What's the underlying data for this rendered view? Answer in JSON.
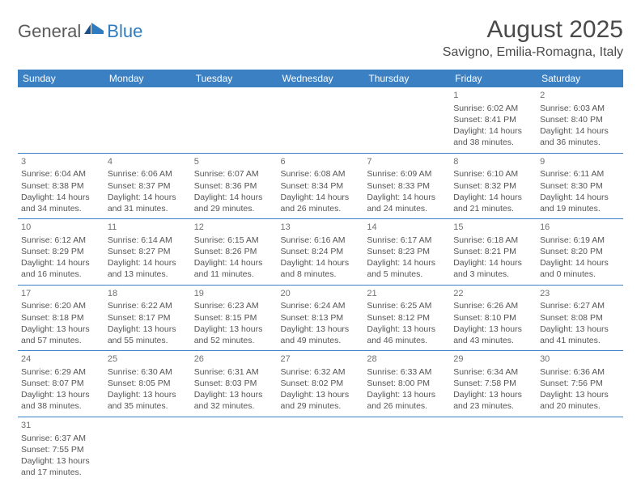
{
  "brand": {
    "part1": "General",
    "part2": "Blue"
  },
  "title": "August 2025",
  "location": "Savigno, Emilia-Romagna, Italy",
  "colors": {
    "header_bg": "#3a80c3",
    "header_text": "#ffffff",
    "border": "#3a80c3",
    "body_text": "#555555",
    "title_text": "#4a4a4a",
    "logo_gray": "#5a5a5a",
    "logo_blue": "#2f7bbf",
    "background": "#ffffff"
  },
  "weekdays": [
    "Sunday",
    "Monday",
    "Tuesday",
    "Wednesday",
    "Thursday",
    "Friday",
    "Saturday"
  ],
  "first_day_index": 5,
  "days": [
    {
      "n": 1,
      "sr": "6:02 AM",
      "ss": "8:41 PM",
      "dl": "14 hours and 38 minutes."
    },
    {
      "n": 2,
      "sr": "6:03 AM",
      "ss": "8:40 PM",
      "dl": "14 hours and 36 minutes."
    },
    {
      "n": 3,
      "sr": "6:04 AM",
      "ss": "8:38 PM",
      "dl": "14 hours and 34 minutes."
    },
    {
      "n": 4,
      "sr": "6:06 AM",
      "ss": "8:37 PM",
      "dl": "14 hours and 31 minutes."
    },
    {
      "n": 5,
      "sr": "6:07 AM",
      "ss": "8:36 PM",
      "dl": "14 hours and 29 minutes."
    },
    {
      "n": 6,
      "sr": "6:08 AM",
      "ss": "8:34 PM",
      "dl": "14 hours and 26 minutes."
    },
    {
      "n": 7,
      "sr": "6:09 AM",
      "ss": "8:33 PM",
      "dl": "14 hours and 24 minutes."
    },
    {
      "n": 8,
      "sr": "6:10 AM",
      "ss": "8:32 PM",
      "dl": "14 hours and 21 minutes."
    },
    {
      "n": 9,
      "sr": "6:11 AM",
      "ss": "8:30 PM",
      "dl": "14 hours and 19 minutes."
    },
    {
      "n": 10,
      "sr": "6:12 AM",
      "ss": "8:29 PM",
      "dl": "14 hours and 16 minutes."
    },
    {
      "n": 11,
      "sr": "6:14 AM",
      "ss": "8:27 PM",
      "dl": "14 hours and 13 minutes."
    },
    {
      "n": 12,
      "sr": "6:15 AM",
      "ss": "8:26 PM",
      "dl": "14 hours and 11 minutes."
    },
    {
      "n": 13,
      "sr": "6:16 AM",
      "ss": "8:24 PM",
      "dl": "14 hours and 8 minutes."
    },
    {
      "n": 14,
      "sr": "6:17 AM",
      "ss": "8:23 PM",
      "dl": "14 hours and 5 minutes."
    },
    {
      "n": 15,
      "sr": "6:18 AM",
      "ss": "8:21 PM",
      "dl": "14 hours and 3 minutes."
    },
    {
      "n": 16,
      "sr": "6:19 AM",
      "ss": "8:20 PM",
      "dl": "14 hours and 0 minutes."
    },
    {
      "n": 17,
      "sr": "6:20 AM",
      "ss": "8:18 PM",
      "dl": "13 hours and 57 minutes."
    },
    {
      "n": 18,
      "sr": "6:22 AM",
      "ss": "8:17 PM",
      "dl": "13 hours and 55 minutes."
    },
    {
      "n": 19,
      "sr": "6:23 AM",
      "ss": "8:15 PM",
      "dl": "13 hours and 52 minutes."
    },
    {
      "n": 20,
      "sr": "6:24 AM",
      "ss": "8:13 PM",
      "dl": "13 hours and 49 minutes."
    },
    {
      "n": 21,
      "sr": "6:25 AM",
      "ss": "8:12 PM",
      "dl": "13 hours and 46 minutes."
    },
    {
      "n": 22,
      "sr": "6:26 AM",
      "ss": "8:10 PM",
      "dl": "13 hours and 43 minutes."
    },
    {
      "n": 23,
      "sr": "6:27 AM",
      "ss": "8:08 PM",
      "dl": "13 hours and 41 minutes."
    },
    {
      "n": 24,
      "sr": "6:29 AM",
      "ss": "8:07 PM",
      "dl": "13 hours and 38 minutes."
    },
    {
      "n": 25,
      "sr": "6:30 AM",
      "ss": "8:05 PM",
      "dl": "13 hours and 35 minutes."
    },
    {
      "n": 26,
      "sr": "6:31 AM",
      "ss": "8:03 PM",
      "dl": "13 hours and 32 minutes."
    },
    {
      "n": 27,
      "sr": "6:32 AM",
      "ss": "8:02 PM",
      "dl": "13 hours and 29 minutes."
    },
    {
      "n": 28,
      "sr": "6:33 AM",
      "ss": "8:00 PM",
      "dl": "13 hours and 26 minutes."
    },
    {
      "n": 29,
      "sr": "6:34 AM",
      "ss": "7:58 PM",
      "dl": "13 hours and 23 minutes."
    },
    {
      "n": 30,
      "sr": "6:36 AM",
      "ss": "7:56 PM",
      "dl": "13 hours and 20 minutes."
    },
    {
      "n": 31,
      "sr": "6:37 AM",
      "ss": "7:55 PM",
      "dl": "13 hours and 17 minutes."
    }
  ],
  "labels": {
    "sunrise": "Sunrise:",
    "sunset": "Sunset:",
    "daylight": "Daylight:"
  }
}
